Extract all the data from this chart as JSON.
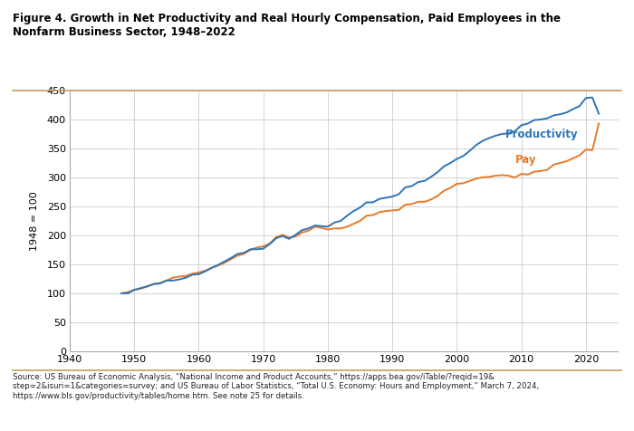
{
  "title": "Figure 4. Growth in Net Productivity and Real Hourly Compensation, Paid Employees in the\nNonfarm Business Sector, 1948–2022",
  "ylabel": "1948 = 100",
  "xlim": [
    1940,
    2025
  ],
  "ylim": [
    0,
    450
  ],
  "yticks": [
    0,
    50,
    100,
    150,
    200,
    250,
    300,
    350,
    400,
    450
  ],
  "xticks": [
    1940,
    1950,
    1960,
    1970,
    1980,
    1990,
    2000,
    2010,
    2020
  ],
  "productivity_color": "#2E75B6",
  "pay_color": "#E87B28",
  "productivity_label": "Productivity",
  "pay_label": "Pay",
  "source_text": "Source: US Bureau of Economic Analysis, “National Income and Product Accounts,” https://apps.bea.gov/iTable/?reqid=19&\nstep=2&isuri=1&categories=survey; and US Bureau of Labor Statistics, “Total U.S. Economy: Hours and Employment,” March 7, 2024,\nhttps://www.bls.gov/productivity/tables/home.htm. See note 25 for details.",
  "productivity_years": [
    1948,
    1949,
    1950,
    1951,
    1952,
    1953,
    1954,
    1955,
    1956,
    1957,
    1958,
    1959,
    1960,
    1961,
    1962,
    1963,
    1964,
    1965,
    1966,
    1967,
    1968,
    1969,
    1970,
    1971,
    1972,
    1973,
    1974,
    1975,
    1976,
    1977,
    1978,
    1979,
    1980,
    1981,
    1982,
    1983,
    1984,
    1985,
    1986,
    1987,
    1988,
    1989,
    1990,
    1991,
    1992,
    1993,
    1994,
    1995,
    1996,
    1997,
    1998,
    1999,
    2000,
    2001,
    2002,
    2003,
    2004,
    2005,
    2006,
    2007,
    2008,
    2009,
    2010,
    2011,
    2012,
    2013,
    2014,
    2015,
    2016,
    2017,
    2018,
    2019,
    2020,
    2021,
    2022
  ],
  "productivity_values": [
    100,
    100,
    106,
    109,
    112,
    116,
    117,
    122,
    122,
    124,
    127,
    132,
    133,
    138,
    144,
    149,
    155,
    161,
    168,
    170,
    176,
    176,
    177,
    185,
    195,
    199,
    194,
    201,
    209,
    212,
    217,
    216,
    215,
    222,
    225,
    234,
    242,
    248,
    257,
    257,
    263,
    265,
    267,
    271,
    283,
    285,
    292,
    294,
    301,
    309,
    319,
    325,
    332,
    337,
    346,
    356,
    363,
    368,
    372,
    375,
    376,
    380,
    390,
    393,
    399,
    400,
    402,
    407,
    409,
    412,
    418,
    423,
    437,
    438,
    410
  ],
  "pay_years": [
    1948,
    1949,
    1950,
    1951,
    1952,
    1953,
    1954,
    1955,
    1956,
    1957,
    1958,
    1959,
    1960,
    1961,
    1962,
    1963,
    1964,
    1965,
    1966,
    1967,
    1968,
    1969,
    1970,
    1971,
    1972,
    1973,
    1974,
    1975,
    1976,
    1977,
    1978,
    1979,
    1980,
    1981,
    1982,
    1983,
    1984,
    1985,
    1986,
    1987,
    1988,
    1989,
    1990,
    1991,
    1992,
    1993,
    1994,
    1995,
    1996,
    1997,
    1998,
    1999,
    2000,
    2001,
    2002,
    2003,
    2004,
    2005,
    2006,
    2007,
    2008,
    2009,
    2010,
    2011,
    2012,
    2013,
    2014,
    2015,
    2016,
    2017,
    2018,
    2019,
    2020,
    2021,
    2022
  ],
  "pay_values": [
    100,
    102,
    106,
    108,
    112,
    116,
    118,
    122,
    127,
    129,
    130,
    134,
    136,
    139,
    144,
    148,
    153,
    159,
    165,
    168,
    175,
    179,
    181,
    186,
    197,
    201,
    196,
    198,
    205,
    208,
    215,
    213,
    210,
    212,
    212,
    215,
    220,
    225,
    234,
    235,
    240,
    242,
    243,
    244,
    253,
    254,
    258,
    258,
    262,
    268,
    277,
    282,
    289,
    290,
    294,
    298,
    300,
    301,
    303,
    304,
    303,
    300,
    306,
    305,
    310,
    311,
    313,
    322,
    325,
    328,
    333,
    338,
    348,
    347,
    393
  ]
}
